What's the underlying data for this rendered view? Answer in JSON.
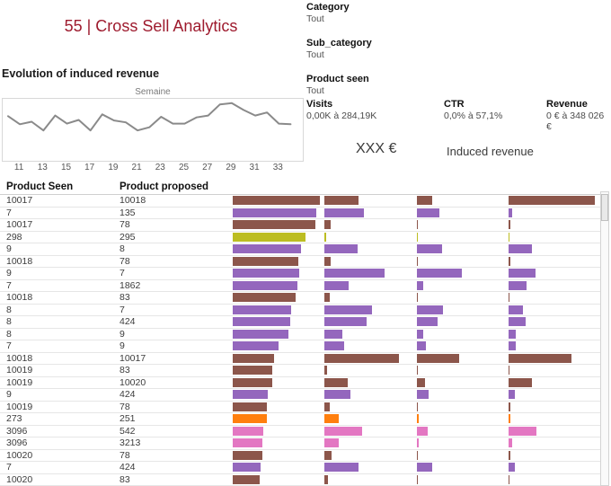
{
  "title": "55 | Cross Sell Analytics",
  "filters": [
    {
      "label": "Category",
      "value": "Tout"
    },
    {
      "label": "Sub_category",
      "value": "Tout"
    },
    {
      "label": "Product seen",
      "value": "Tout"
    }
  ],
  "line_section": {
    "heading": "Evolution of induced revenue",
    "axis_label": "Semaine"
  },
  "chart_data": {
    "type": "line",
    "title": "Evolution of induced revenue",
    "xlabel": "Semaine",
    "ylabel": "",
    "x": [
      10,
      11,
      12,
      13,
      14,
      15,
      16,
      17,
      18,
      19,
      20,
      21,
      22,
      23,
      24,
      25,
      26,
      27,
      28,
      29,
      30,
      31,
      32,
      33,
      34
    ],
    "values_relative": [
      0.72,
      0.59,
      0.63,
      0.49,
      0.73,
      0.6,
      0.66,
      0.49,
      0.75,
      0.65,
      0.62,
      0.49,
      0.54,
      0.71,
      0.6,
      0.6,
      0.7,
      0.73,
      0.91,
      0.93,
      0.82,
      0.73,
      0.78,
      0.6,
      0.59
    ],
    "x_ticks": [
      11,
      13,
      15,
      17,
      19,
      21,
      23,
      25,
      27,
      29,
      31,
      33
    ],
    "line_color": "#8a8a8a",
    "grid": false,
    "legend": false
  },
  "kpis": [
    {
      "label": "Visits",
      "value": "0,00K à 284,19K"
    },
    {
      "label": "CTR",
      "value": "0,0% à 57,1%"
    },
    {
      "label": "Revenue",
      "value": "0 € à 348 026 €"
    }
  ],
  "induced": {
    "amount": "XXX €",
    "label": "Induced revenue"
  },
  "colors": {
    "brown": "#8c564b",
    "purple": "#9467bd",
    "olive": "#bcbd22",
    "orange": "#ff7f0e",
    "pink": "#e377c2",
    "title_accent": "#9e1b2e"
  },
  "table": {
    "col1_header": "Product Seen",
    "col2_header": "Product proposed",
    "bar_column_count": 4,
    "rows": [
      {
        "seen": "10017",
        "proposed": "10018",
        "color": "brown",
        "bars": [
          97,
          38,
          17,
          96
        ]
      },
      {
        "seen": "7",
        "proposed": "135",
        "color": "purple",
        "bars": [
          93,
          44,
          25,
          4
        ]
      },
      {
        "seen": "10017",
        "proposed": "78",
        "color": "brown",
        "bars": [
          92,
          7,
          1,
          2
        ]
      },
      {
        "seen": "298",
        "proposed": "295",
        "color": "olive",
        "bars": [
          81,
          2,
          1,
          1
        ]
      },
      {
        "seen": "9",
        "proposed": "8",
        "color": "purple",
        "bars": [
          76,
          37,
          28,
          26
        ]
      },
      {
        "seen": "10018",
        "proposed": "78",
        "color": "brown",
        "bars": [
          73,
          7,
          1,
          2
        ]
      },
      {
        "seen": "9",
        "proposed": "7",
        "color": "purple",
        "bars": [
          74,
          67,
          50,
          30
        ]
      },
      {
        "seen": "7",
        "proposed": "1862",
        "color": "purple",
        "bars": [
          72,
          27,
          7,
          20
        ]
      },
      {
        "seen": "10018",
        "proposed": "83",
        "color": "brown",
        "bars": [
          70,
          6,
          1,
          1
        ]
      },
      {
        "seen": "8",
        "proposed": "7",
        "color": "purple",
        "bars": [
          65,
          53,
          29,
          16
        ]
      },
      {
        "seen": "8",
        "proposed": "424",
        "color": "purple",
        "bars": [
          64,
          47,
          23,
          19
        ]
      },
      {
        "seen": "8",
        "proposed": "9",
        "color": "purple",
        "bars": [
          62,
          20,
          7,
          8
        ]
      },
      {
        "seen": "7",
        "proposed": "9",
        "color": "purple",
        "bars": [
          51,
          22,
          10,
          8
        ]
      },
      {
        "seen": "10018",
        "proposed": "10017",
        "color": "brown",
        "bars": [
          46,
          83,
          47,
          70
        ]
      },
      {
        "seen": "10019",
        "proposed": "83",
        "color": "brown",
        "bars": [
          44,
          3,
          1,
          1
        ]
      },
      {
        "seen": "10019",
        "proposed": "10020",
        "color": "brown",
        "bars": [
          44,
          26,
          9,
          26
        ]
      },
      {
        "seen": "9",
        "proposed": "424",
        "color": "purple",
        "bars": [
          39,
          29,
          13,
          7
        ]
      },
      {
        "seen": "10019",
        "proposed": "78",
        "color": "brown",
        "bars": [
          38,
          6,
          1,
          2
        ]
      },
      {
        "seen": "273",
        "proposed": "251",
        "color": "orange",
        "bars": [
          38,
          16,
          2,
          2
        ]
      },
      {
        "seen": "3096",
        "proposed": "542",
        "color": "pink",
        "bars": [
          34,
          42,
          12,
          31
        ]
      },
      {
        "seen": "3096",
        "proposed": "3213",
        "color": "pink",
        "bars": [
          33,
          16,
          2,
          4
        ]
      },
      {
        "seen": "10020",
        "proposed": "78",
        "color": "brown",
        "bars": [
          33,
          8,
          1,
          2
        ]
      },
      {
        "seen": "7",
        "proposed": "424",
        "color": "purple",
        "bars": [
          31,
          38,
          17,
          7
        ]
      },
      {
        "seen": "10020",
        "proposed": "83",
        "color": "brown",
        "bars": [
          30,
          4,
          1,
          1
        ]
      }
    ]
  }
}
